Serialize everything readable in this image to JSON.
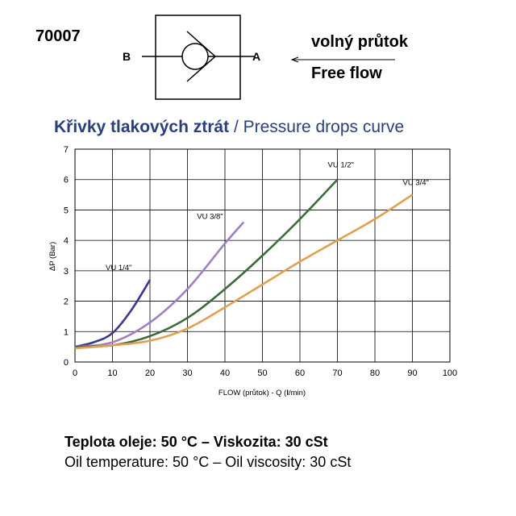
{
  "header": {
    "code": "70007",
    "port_b": "B",
    "port_a": "A",
    "flow_cz": "volný průtok",
    "flow_en": "Free flow"
  },
  "chart_data": {
    "type": "line",
    "title_cz": "Křivky tlakových ztrát",
    "title_sep": " / ",
    "title_en": "Pressure drops curve",
    "xlabel_pre": "FLOW (průtok) - Q (",
    "xlabel_unit": "l",
    "xlabel_post": "/min)",
    "ylabel": "ΔP (Bar)",
    "xlim": [
      0,
      100
    ],
    "ylim": [
      0,
      7
    ],
    "x_ticks": [
      0,
      10,
      20,
      30,
      40,
      50,
      60,
      70,
      80,
      90,
      100
    ],
    "y_ticks": [
      0,
      1,
      2,
      3,
      4,
      5,
      6,
      7
    ],
    "grid": true,
    "series": [
      {
        "name": "VU 1/4\"",
        "color": "#3a3a8c",
        "x": [
          0,
          5,
          10,
          15,
          20
        ],
        "y": [
          0.5,
          0.65,
          0.95,
          1.7,
          2.7
        ]
      },
      {
        "name": "VU 3/8\"",
        "color": "#a17fc0",
        "x": [
          0,
          10,
          20,
          30,
          40,
          45
        ],
        "y": [
          0.5,
          0.65,
          1.3,
          2.4,
          3.9,
          4.6
        ]
      },
      {
        "name": "VU 1/2\"",
        "color": "#3d6a3a",
        "x": [
          0,
          10,
          20,
          30,
          40,
          50,
          60,
          70
        ],
        "y": [
          0.5,
          0.55,
          0.85,
          1.45,
          2.4,
          3.5,
          4.7,
          6.0
        ]
      },
      {
        "name": "VU 3/4\"",
        "color": "#e0a050",
        "x": [
          0,
          10,
          20,
          30,
          40,
          50,
          60,
          70,
          80,
          90
        ],
        "y": [
          0.45,
          0.55,
          0.7,
          1.1,
          1.8,
          2.55,
          3.3,
          4.0,
          4.7,
          5.5
        ]
      }
    ]
  },
  "footer": {
    "line1": "Teplota oleje: 50 °C – Viskozita: 30 cSt",
    "line2": "Oil temperature: 50 °C – Oil viscosity: 30 cSt"
  }
}
